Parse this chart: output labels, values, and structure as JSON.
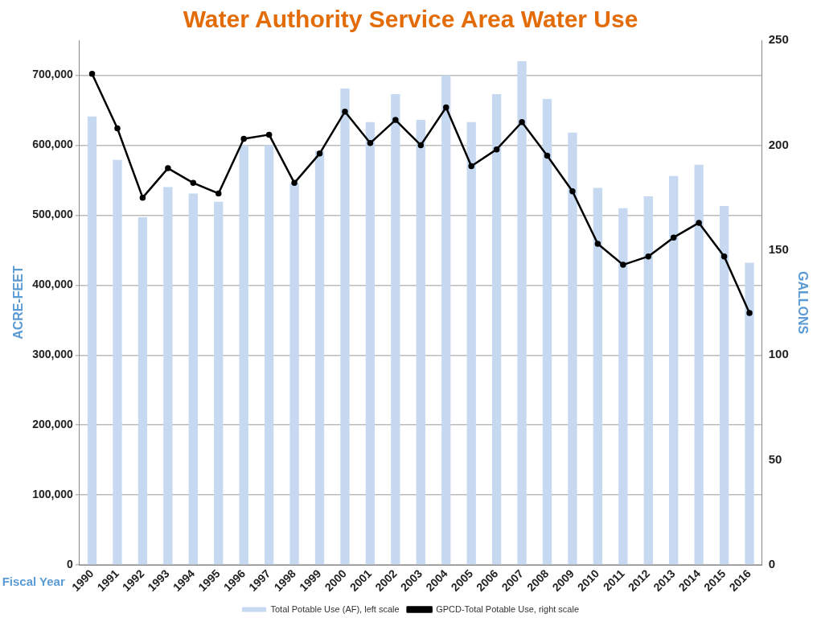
{
  "chart_data": {
    "type": "bar",
    "title": "Water Authority Service Area Water Use",
    "xlabel": "Fiscal Year",
    "ylabel": "ACRE-FEET",
    "y2label": "GALLONS",
    "categories": [
      "1990",
      "1991",
      "1992",
      "1993",
      "1994",
      "1995",
      "1996",
      "1997",
      "1998",
      "1999",
      "2000",
      "2001",
      "2002",
      "2003",
      "2004",
      "2005",
      "2006",
      "2007",
      "2008",
      "2009",
      "2010",
      "2011",
      "2012",
      "2013",
      "2014",
      "2015",
      "2016"
    ],
    "series": [
      {
        "name": "Total Potable Use (AF), left scale",
        "color": "#c6d9f1",
        "values": [
          641000,
          579000,
          497000,
          540000,
          531000,
          519000,
          600000,
          600000,
          546000,
          592000,
          681000,
          633000,
          673000,
          636000,
          700000,
          633000,
          673000,
          720000,
          666000,
          618000,
          539000,
          510000,
          527000,
          556000,
          572000,
          513000,
          432000
        ]
      },
      {
        "name": "GPCD-Total Potable Use, right scale",
        "type": "line",
        "axis": "y2",
        "color": "#000000",
        "marker": "circle",
        "values": [
          234,
          208,
          175,
          189,
          182,
          177,
          203,
          205,
          182,
          196,
          216,
          201,
          212,
          200,
          218,
          190,
          198,
          211,
          195,
          178,
          153,
          143,
          147,
          156,
          163,
          147,
          120
        ]
      }
    ],
    "ylim": [
      0,
      750000
    ],
    "yticks": [
      {
        "value": 0,
        "label": "0"
      },
      {
        "value": 100000,
        "label": "100,000"
      },
      {
        "value": 200000,
        "label": "200,000"
      },
      {
        "value": 300000,
        "label": "300,000"
      },
      {
        "value": 400000,
        "label": "400,000"
      },
      {
        "value": 500000,
        "label": "500,000"
      },
      {
        "value": 600000,
        "label": "600,000"
      },
      {
        "value": 700000,
        "label": "700,000"
      }
    ],
    "y2lim": [
      0,
      250
    ],
    "y2ticks": [
      0,
      50,
      100,
      150,
      200,
      250
    ],
    "grid": "y",
    "legend": "bottom"
  }
}
